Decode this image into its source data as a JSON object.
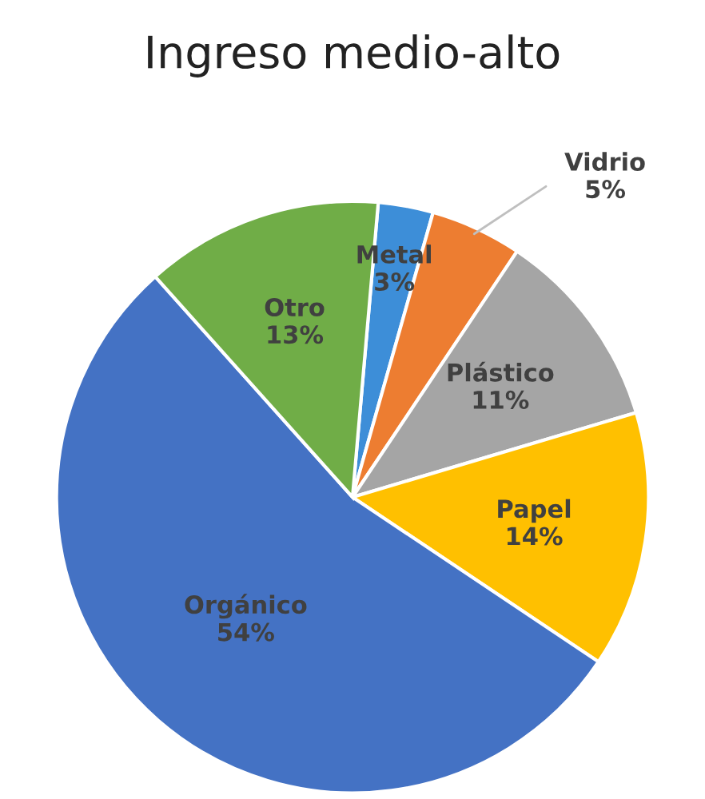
{
  "chart_data": {
    "type": "pie",
    "title": "Ingreso medio-alto",
    "categories": [
      "Metal",
      "Vidrio",
      "Plástico",
      "Papel",
      "Orgánico",
      "Otro"
    ],
    "values": [
      3,
      5,
      11,
      14,
      54,
      13
    ],
    "colors": [
      "#3d8ed8",
      "#ed7d31",
      "#a5a5a5",
      "#ffc000",
      "#4472c4",
      "#70ad47"
    ],
    "value_labels": [
      "3%",
      "5%",
      "11%",
      "14%",
      "54%",
      "13%"
    ]
  }
}
